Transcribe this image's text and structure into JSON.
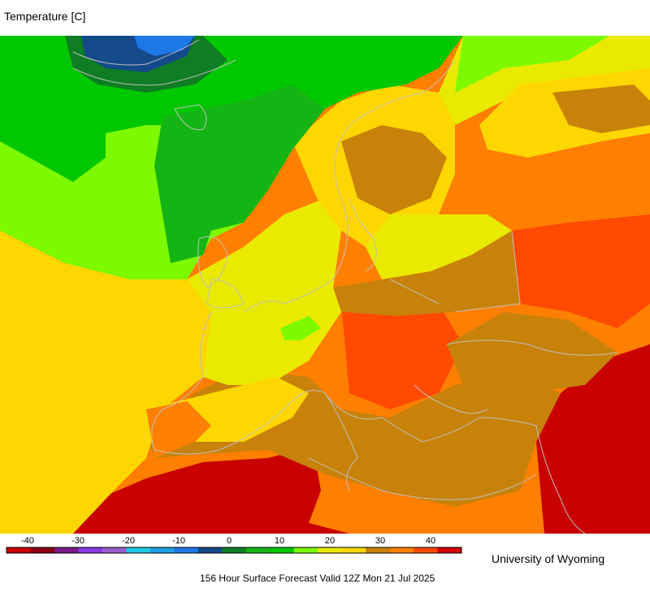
{
  "title": "Temperature [C]",
  "credit": "University of Wyoming",
  "valid_text": "156 Hour Surface Forecast Valid 12Z Mon 21 Jul 2025",
  "colorbar": {
    "tick_labels": [
      "-40",
      "-30",
      "-20",
      "-10",
      "0",
      "10",
      "20",
      "30",
      "40"
    ],
    "colors": [
      "#c80000",
      "#8c0014",
      "#7a1a8a",
      "#8a3ae6",
      "#9a5fd0",
      "#1ec8e6",
      "#1ea0e6",
      "#1e78e6",
      "#144a8a",
      "#0f7d23",
      "#14b414",
      "#00c800",
      "#7dfa00",
      "#eaea00",
      "#ffd700",
      "#c8820a",
      "#ff7f00",
      "#ff4a00",
      "#d20000"
    ]
  },
  "map": {
    "field": "surface temperature",
    "units": "C",
    "regions": "Europe, North Africa, North Atlantic"
  }
}
